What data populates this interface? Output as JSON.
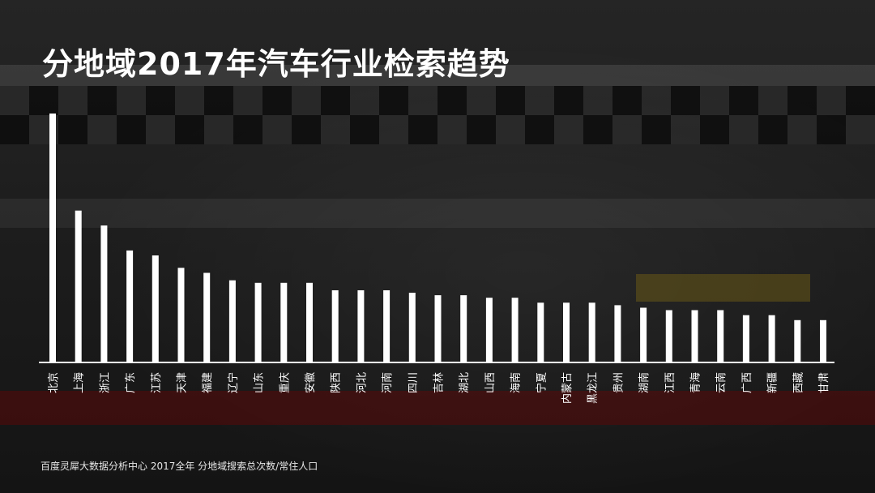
{
  "title": "分地域2017年汽车行业检索趋势",
  "source": "百度灵犀大数据分析中心 2017全年   分地域搜索总次数/常住人口",
  "colors": {
    "bar": "#ffffff",
    "baseline": "#ffffff",
    "label": "#ffffff"
  },
  "chart_data": {
    "type": "bar",
    "title": "分地域2017年汽车行业检索趋势",
    "categories": [
      "北京",
      "上海",
      "浙江",
      "广东",
      "江苏",
      "天津",
      "福建",
      "辽宁",
      "山东",
      "重庆",
      "安徽",
      "陕西",
      "河北",
      "河南",
      "四川",
      "吉林",
      "湖北",
      "山西",
      "海南",
      "宁夏",
      "内蒙古",
      "黑龙江",
      "贵州",
      "湖南",
      "江西",
      "青海",
      "云南",
      "广西",
      "新疆",
      "西藏",
      "甘肃"
    ],
    "values": [
      100,
      61,
      55,
      45,
      43,
      38,
      36,
      33,
      32,
      32,
      32,
      29,
      29,
      29,
      28,
      27,
      27,
      26,
      26,
      24,
      24,
      24,
      23,
      22,
      21,
      21,
      21,
      19,
      19,
      17,
      17
    ],
    "ylim": [
      0,
      100
    ],
    "grid": false,
    "xlabel": "",
    "ylabel": ""
  }
}
